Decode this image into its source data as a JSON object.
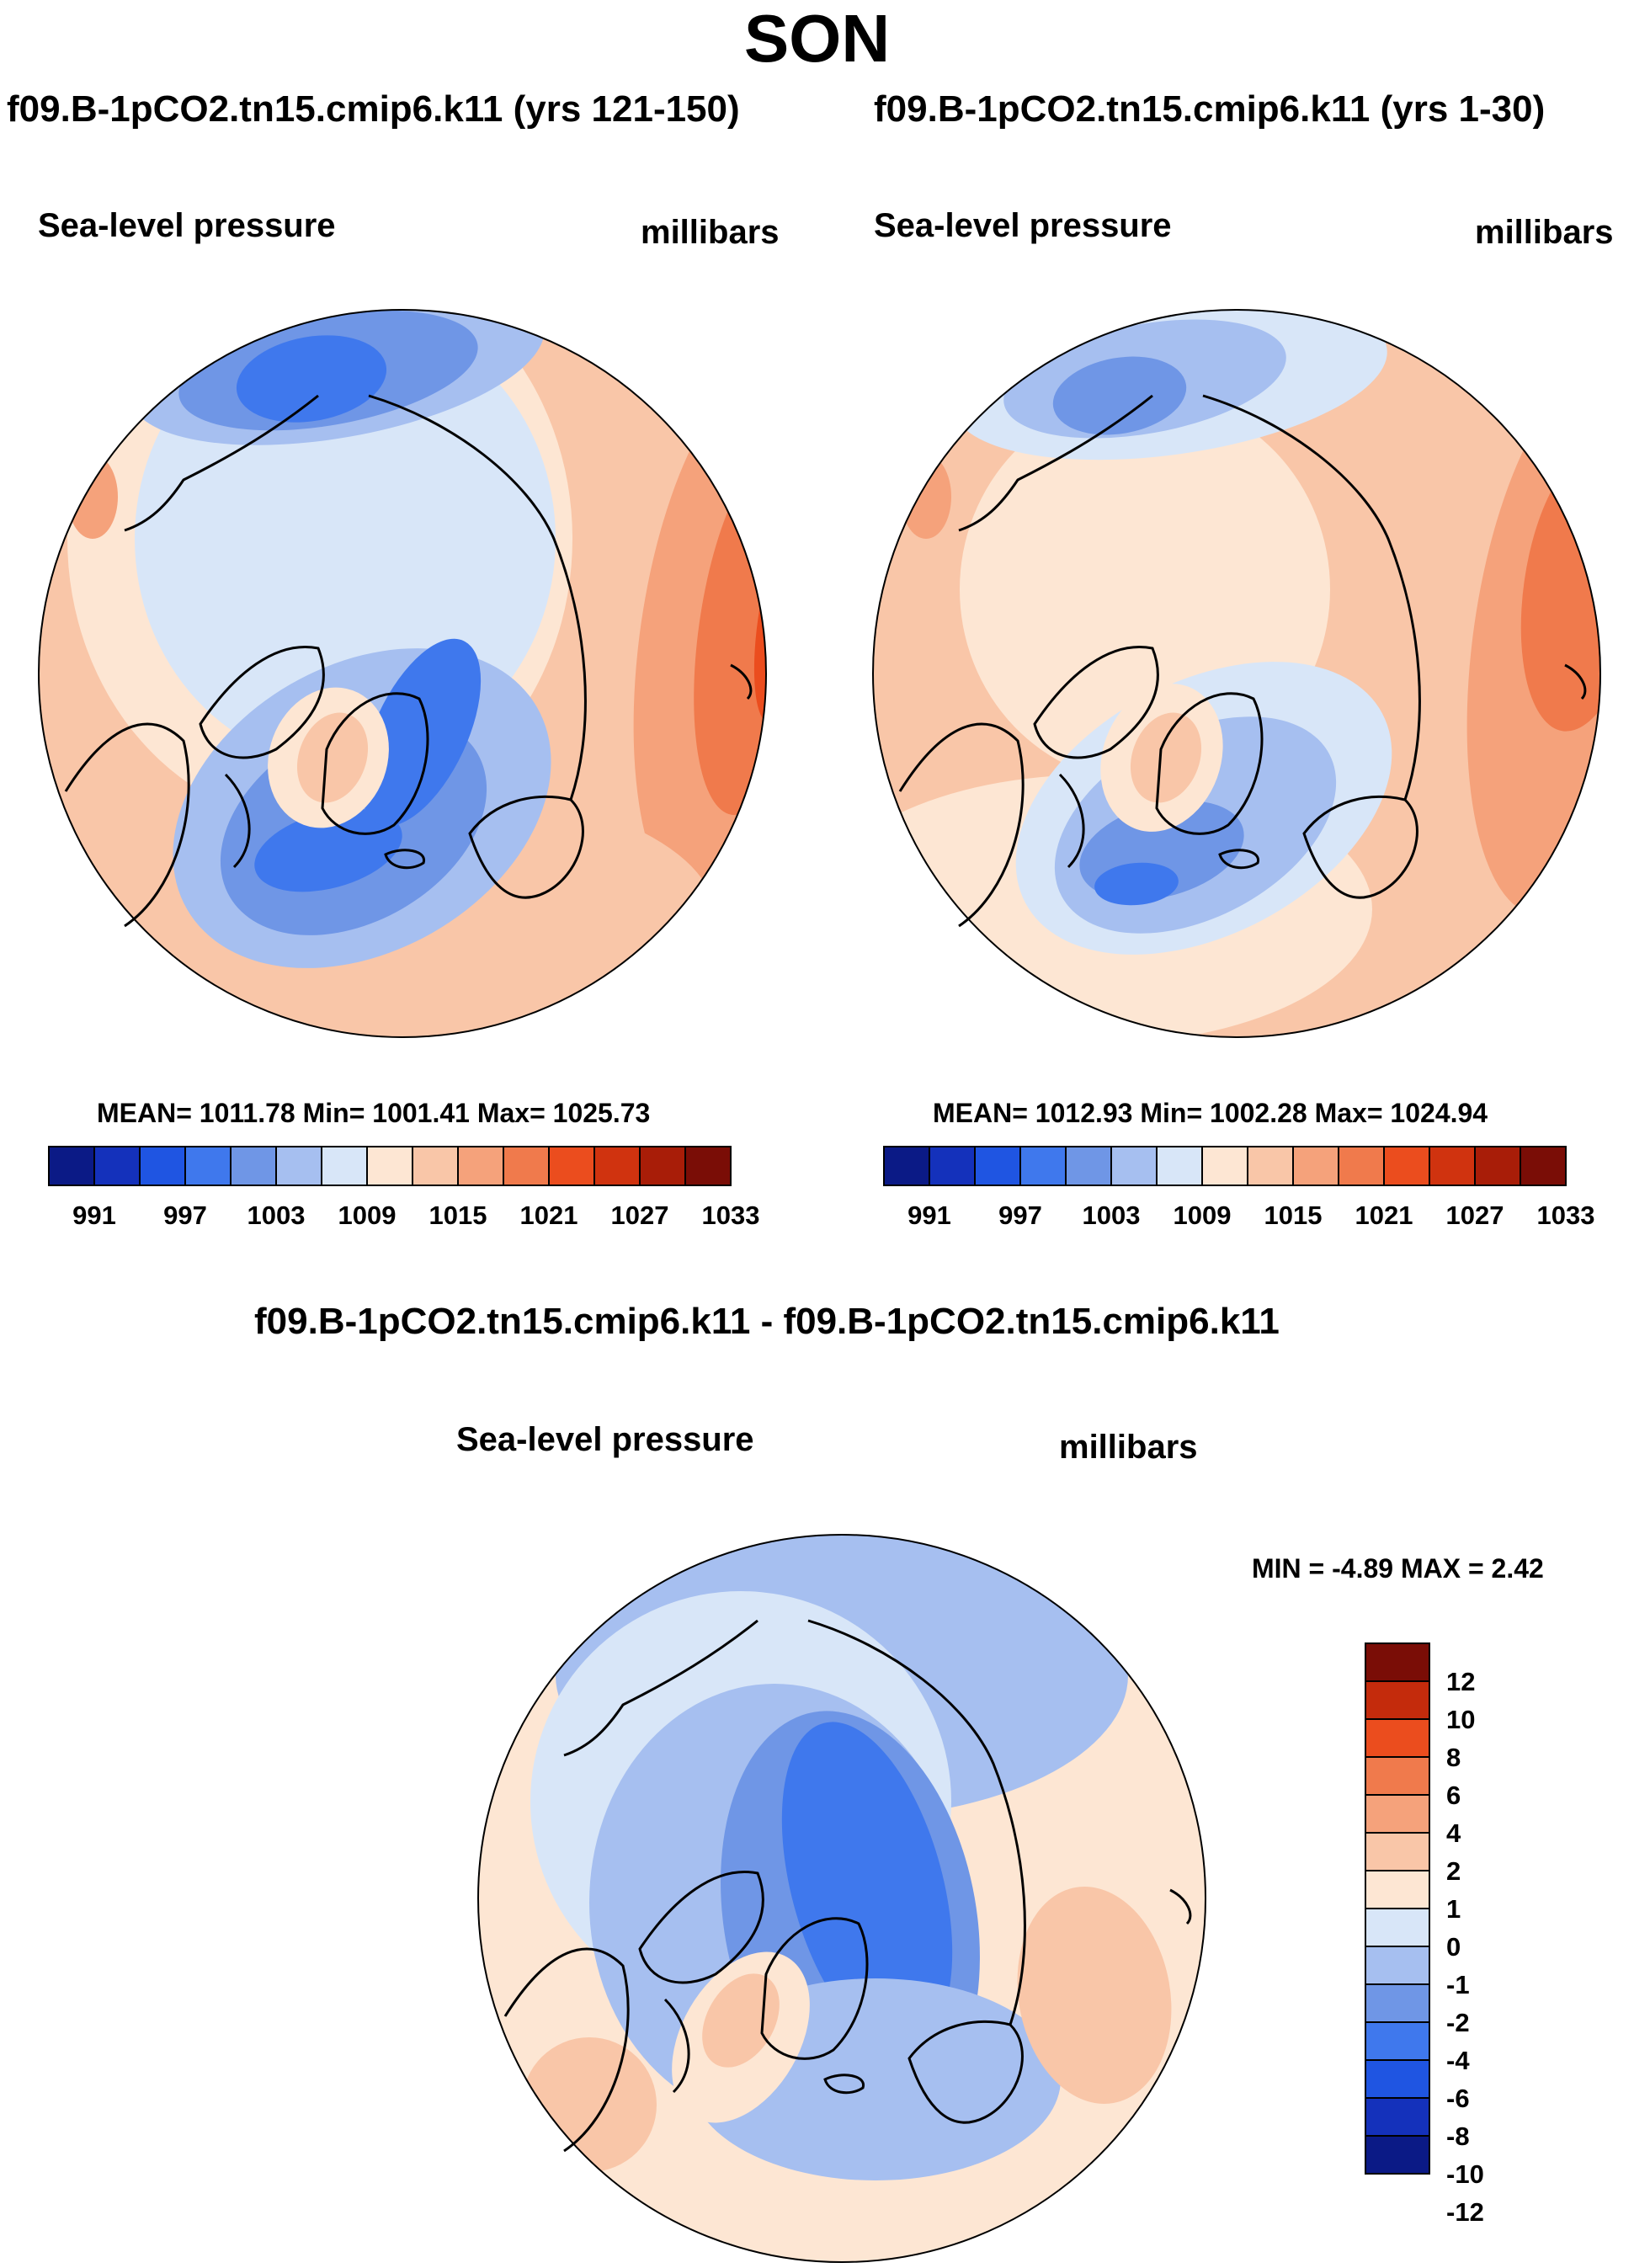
{
  "figure": {
    "season": "SON",
    "diff_title": "f09.B-1pCO2.tn15.cmip6.k11 - f09.B-1pCO2.tn15.cmip6.k11"
  },
  "panels": [
    {
      "title": "f09.B-1pCO2.tn15.cmip6.k11 (yrs 121-150)",
      "variable": "Sea-level pressure",
      "units": "millibars",
      "stats": "MEAN= 1011.78  Min= 1001.41  Max= 1025.73"
    },
    {
      "title": "f09.B-1pCO2.tn15.cmip6.k11 (yrs 1-30)",
      "variable": "Sea-level pressure",
      "units": "millibars",
      "stats": "MEAN= 1012.93  Min= 1002.28  Max= 1024.94"
    },
    {
      "title": "",
      "variable": "Sea-level pressure",
      "units": "millibars",
      "stats": "MIN =  -4.89 MAX =   2.42"
    }
  ],
  "colors": {
    "slp_scale": [
      "#0b1a86",
      "#1431bb",
      "#1f55e2",
      "#3f78ed",
      "#6f96e6",
      "#a6bff0",
      "#d8e6f8",
      "#fde6d3",
      "#f9c6a8",
      "#f5a27b",
      "#f07a4c",
      "#eb4d1e",
      "#d0330f",
      "#a81d08",
      "#7a0d06"
    ],
    "diff_scale": [
      "#0b1a86",
      "#1431bb",
      "#1f55e2",
      "#3f78ed",
      "#6f96e6",
      "#a6bff0",
      "#d8e6f8",
      "#fde6d3",
      "#f9c6a8",
      "#f5a27b",
      "#f07a4c",
      "#eb4d1e",
      "#c42b0c",
      "#7a0d06"
    ]
  },
  "chart_data": [
    {
      "type": "heatmap",
      "projection": "north polar stereographic",
      "title": "f09.B-1pCO2.tn15.cmip6.k11 (yrs 121-150)",
      "variable": "Sea-level pressure",
      "units": "millibars",
      "mean": 1011.78,
      "min": 1001.41,
      "max": 1025.73,
      "contour_levels": [
        988,
        991,
        994,
        997,
        1000,
        1003,
        1006,
        1009,
        1012,
        1015,
        1018,
        1021,
        1024,
        1027,
        1030,
        1033
      ],
      "colorbar_labels": [
        "991",
        "997",
        "1003",
        "1009",
        "1015",
        "1021",
        "1027",
        "1033"
      ]
    },
    {
      "type": "heatmap",
      "projection": "north polar stereographic",
      "title": "f09.B-1pCO2.tn15.cmip6.k11 (yrs 1-30)",
      "variable": "Sea-level pressure",
      "units": "millibars",
      "mean": 1012.93,
      "min": 1002.28,
      "max": 1024.94,
      "contour_levels": [
        988,
        991,
        994,
        997,
        1000,
        1003,
        1006,
        1009,
        1012,
        1015,
        1018,
        1021,
        1024,
        1027,
        1030,
        1033
      ],
      "colorbar_labels": [
        "991",
        "997",
        "1003",
        "1009",
        "1015",
        "1021",
        "1027",
        "1033"
      ]
    },
    {
      "type": "heatmap",
      "projection": "north polar stereographic",
      "title": "f09.B-1pCO2.tn15.cmip6.k11 - f09.B-1pCO2.tn15.cmip6.k11",
      "variable": "Sea-level pressure",
      "units": "millibars",
      "min": -4.89,
      "max": 2.42,
      "contour_levels": [
        -12,
        -10,
        -8,
        -6,
        -4,
        -2,
        -1,
        0,
        1,
        2,
        4,
        6,
        8,
        10,
        12
      ],
      "colorbar_labels": [
        "12",
        "10",
        "8",
        "6",
        "4",
        "2",
        "1",
        "0",
        "-1",
        "-2",
        "-4",
        "-6",
        "-8",
        "-10",
        "-12"
      ]
    }
  ]
}
